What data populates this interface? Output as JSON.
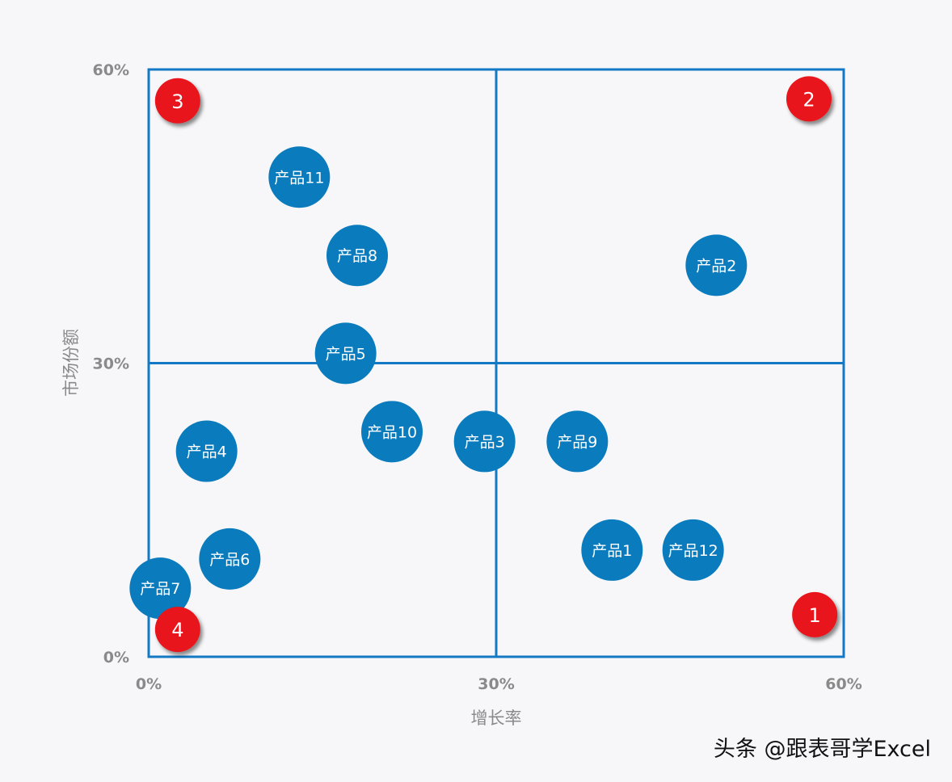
{
  "chart_data": {
    "type": "scatter",
    "xlabel": "增长率",
    "ylabel": "市场份额",
    "xlim": [
      0,
      0.6
    ],
    "ylim": [
      0,
      0.6
    ],
    "x_ticks": [
      "0%",
      "30%",
      "60%"
    ],
    "y_ticks": [
      "0%",
      "30%",
      "60%"
    ],
    "quadrant_dividers": {
      "x": 0.3,
      "y": 0.3
    },
    "bubble_color": "#0a7bbd",
    "frame_color": "#1479c4",
    "points": [
      {
        "label": "产品1",
        "x": 0.4,
        "y": 0.109
      },
      {
        "label": "产品2",
        "x": 0.49,
        "y": 0.4
      },
      {
        "label": "产品3",
        "x": 0.29,
        "y": 0.22
      },
      {
        "label": "产品4",
        "x": 0.05,
        "y": 0.21
      },
      {
        "label": "产品5",
        "x": 0.17,
        "y": 0.31
      },
      {
        "label": "产品6",
        "x": 0.07,
        "y": 0.1
      },
      {
        "label": "产品7",
        "x": 0.01,
        "y": 0.07
      },
      {
        "label": "产品8",
        "x": 0.18,
        "y": 0.41
      },
      {
        "label": "产品9",
        "x": 0.37,
        "y": 0.22
      },
      {
        "label": "产品10",
        "x": 0.21,
        "y": 0.23
      },
      {
        "label": "产品11",
        "x": 0.13,
        "y": 0.49
      },
      {
        "label": "产品12",
        "x": 0.47,
        "y": 0.109
      }
    ],
    "quadrant_markers": {
      "color": "#e8141a",
      "items": [
        {
          "label": "1",
          "x": 0.575,
          "y": 0.043
        },
        {
          "label": "2",
          "x": 0.57,
          "y": 0.57
        },
        {
          "label": "3",
          "x": 0.025,
          "y": 0.568
        },
        {
          "label": "4",
          "x": 0.025,
          "y": 0.028
        }
      ]
    }
  },
  "watermark": "头条 @跟表哥学Excel"
}
